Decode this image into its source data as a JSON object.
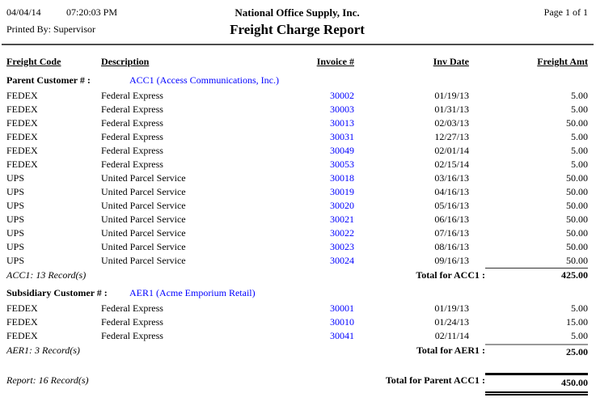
{
  "header": {
    "date": "04/04/14",
    "time": "07:20:03 PM",
    "company": "National Office Supply, Inc.",
    "page_info": "Page 1 of  1",
    "printed_by": "Printed By: Supervisor",
    "title": "Freight Charge Report"
  },
  "columns": [
    "Freight Code",
    "Description",
    "Invoice #",
    "Inv Date",
    "Freight Amt"
  ],
  "sections": [
    {
      "group_label": "Parent Customer # :",
      "customer_link": "ACC1 (Access Communications, Inc.)",
      "rows": [
        {
          "code": "FEDEX",
          "description": "Federal Express",
          "invoice": "30002",
          "date": "01/19/13",
          "amount": "5.00"
        },
        {
          "code": "FEDEX",
          "description": "Federal Express",
          "invoice": "30003",
          "date": "01/31/13",
          "amount": "5.00"
        },
        {
          "code": "FEDEX",
          "description": "Federal Express",
          "invoice": "30013",
          "date": "02/03/13",
          "amount": "50.00"
        },
        {
          "code": "FEDEX",
          "description": "Federal Express",
          "invoice": "30031",
          "date": "12/27/13",
          "amount": "5.00"
        },
        {
          "code": "FEDEX",
          "description": "Federal Express",
          "invoice": "30049",
          "date": "02/01/14",
          "amount": "5.00"
        },
        {
          "code": "FEDEX",
          "description": "Federal Express",
          "invoice": "30053",
          "date": "02/15/14",
          "amount": "5.00"
        },
        {
          "code": "UPS",
          "description": "United Parcel Service",
          "invoice": "30018",
          "date": "03/16/13",
          "amount": "50.00"
        },
        {
          "code": "UPS",
          "description": "United Parcel Service",
          "invoice": "30019",
          "date": "04/16/13",
          "amount": "50.00"
        },
        {
          "code": "UPS",
          "description": "United Parcel Service",
          "invoice": "30020",
          "date": "05/16/13",
          "amount": "50.00"
        },
        {
          "code": "UPS",
          "description": "United Parcel Service",
          "invoice": "30021",
          "date": "06/16/13",
          "amount": "50.00"
        },
        {
          "code": "UPS",
          "description": "United Parcel Service",
          "invoice": "30022",
          "date": "07/16/13",
          "amount": "50.00"
        },
        {
          "code": "UPS",
          "description": "United Parcel Service",
          "invoice": "30023",
          "date": "08/16/13",
          "amount": "50.00"
        },
        {
          "code": "UPS",
          "description": "United Parcel Service",
          "invoice": "30024",
          "date": "09/16/13",
          "amount": "50.00"
        }
      ],
      "records_text": "ACC1: 13 Record(s)",
      "total_label": "Total for ACC1 :",
      "total_amount": "425.00"
    },
    {
      "group_label": "Subsidiary Customer # :",
      "customer_link": "AER1 (Acme Emporium Retail)",
      "rows": [
        {
          "code": "FEDEX",
          "description": "Federal Express",
          "invoice": "30001",
          "date": "01/19/13",
          "amount": "5.00"
        },
        {
          "code": "FEDEX",
          "description": "Federal Express",
          "invoice": "30010",
          "date": "01/24/13",
          "amount": "15.00"
        },
        {
          "code": "FEDEX",
          "description": "Federal Express",
          "invoice": "30041",
          "date": "02/11/14",
          "amount": "5.00"
        }
      ],
      "records_text": "AER1: 3 Record(s)",
      "total_label": "Total for AER1 :",
      "total_amount": "25.00"
    }
  ],
  "report_total": {
    "records_text": "Report: 16 Record(s)",
    "total_label": "Total for Parent ACC1 :",
    "total_amount": "450.00"
  },
  "colors": {
    "link_blue": "#0000ff",
    "text": "#000000",
    "divider_gray": "#4d4d4d"
  }
}
